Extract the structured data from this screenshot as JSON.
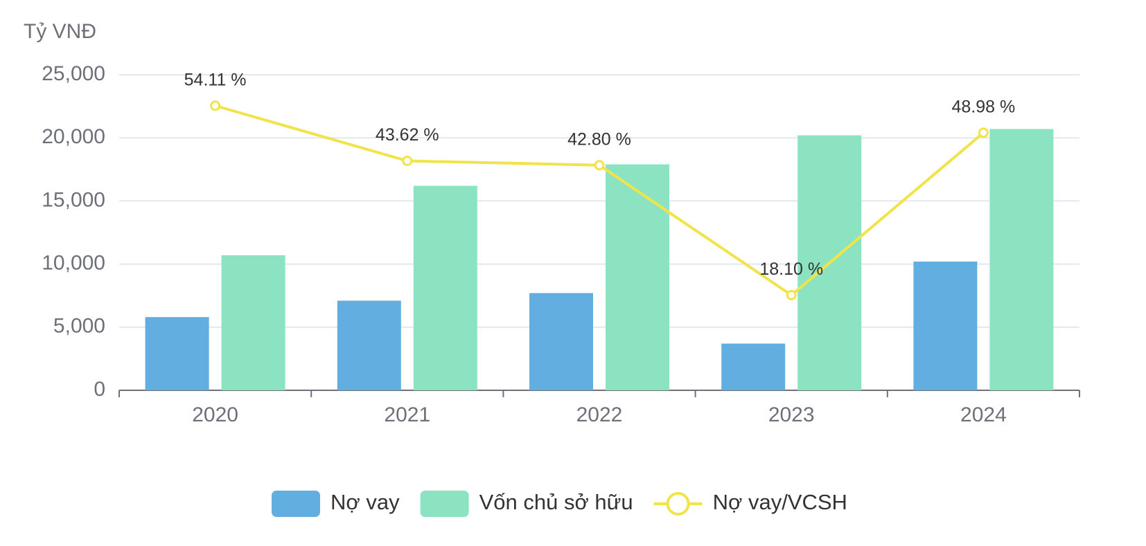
{
  "chart_data": {
    "type": "bar",
    "y_label": "Tỷ VNĐ",
    "categories": [
      "2020",
      "2021",
      "2022",
      "2023",
      "2024"
    ],
    "series": [
      {
        "name": "Nợ vay",
        "type": "bar",
        "color": "#62aee0",
        "values": [
          5800,
          7100,
          7700,
          3700,
          10200
        ]
      },
      {
        "name": "Vốn chủ sở hữu",
        "type": "bar",
        "color": "#8ce3c2",
        "values": [
          10700,
          16200,
          17900,
          20200,
          20700
        ]
      },
      {
        "name": "Nợ vay/VCSH",
        "type": "line",
        "axis": "y2",
        "color": "#f0e44a",
        "values": [
          54.11,
          43.62,
          42.8,
          18.1,
          48.98
        ],
        "value_labels": [
          "54.11 %",
          "43.62 %",
          "42.80 %",
          "18.10 %",
          "48.98 %"
        ]
      }
    ],
    "ylim": [
      0,
      25000
    ],
    "yticks": [
      0,
      {
        "value": 5000,
        "label": "5,000"
      },
      {
        "value": 10000,
        "label": "10,000"
      },
      {
        "value": 15000,
        "label": "15,000"
      },
      {
        "value": 20000,
        "label": "20,000"
      },
      {
        "value": 25000,
        "label": "25,000"
      }
    ],
    "y2lim": [
      0,
      60
    ],
    "grid": true,
    "legend": "bottom"
  }
}
